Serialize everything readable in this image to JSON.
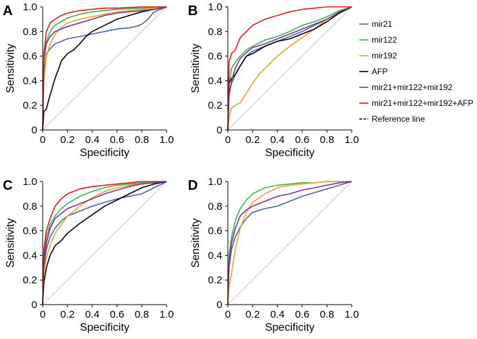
{
  "legend": [
    {
      "name": "mir21",
      "color": "#4a62a8"
    },
    {
      "name": "mir122",
      "color": "#3cb44b"
    },
    {
      "name": "mir192",
      "color": "#f0a128"
    },
    {
      "name": "AFP",
      "color": "#000000"
    },
    {
      "name": "mir21+mir122+mir192",
      "color": "#7b3294"
    },
    {
      "name": "mir21+mir122+mir192+AFP",
      "color": "#e31a1c"
    },
    {
      "name": "Reference line",
      "color": "#000000",
      "dash": true
    }
  ],
  "chart_data": [
    {
      "panel": "A",
      "type": "line",
      "xlabel": "Specificity",
      "ylabel": "Sensitivity",
      "xlim": [
        0,
        1
      ],
      "ylim": [
        0,
        1
      ],
      "xticks": [
        "0",
        "0.2",
        "0.4",
        "0.6",
        "0.8",
        "1.0"
      ],
      "yticks": [
        "0",
        "0.2",
        "0.4",
        "0.6",
        "0.8",
        "1.0"
      ],
      "series": [
        {
          "name": "mir21",
          "x": [
            0,
            0.01,
            0.03,
            0.06,
            0.1,
            0.15,
            0.2,
            0.3,
            0.4,
            0.5,
            0.6,
            0.7,
            0.75,
            0.8,
            0.85,
            0.9,
            1.0
          ],
          "y": [
            0,
            0.45,
            0.62,
            0.66,
            0.7,
            0.72,
            0.74,
            0.76,
            0.78,
            0.8,
            0.82,
            0.83,
            0.84,
            0.86,
            0.9,
            0.96,
            1.0
          ]
        },
        {
          "name": "mir122",
          "x": [
            0,
            0.01,
            0.03,
            0.06,
            0.1,
            0.15,
            0.2,
            0.3,
            0.4,
            0.5,
            0.6,
            0.7,
            0.8,
            0.9,
            1.0
          ],
          "y": [
            0,
            0.55,
            0.72,
            0.8,
            0.85,
            0.88,
            0.91,
            0.94,
            0.96,
            0.97,
            0.98,
            0.985,
            0.99,
            0.995,
            1.0
          ]
        },
        {
          "name": "mir192",
          "x": [
            0,
            0.01,
            0.03,
            0.06,
            0.1,
            0.15,
            0.2,
            0.3,
            0.4,
            0.5,
            0.6,
            0.7,
            0.8,
            0.9,
            1.0
          ],
          "y": [
            0,
            0.4,
            0.6,
            0.7,
            0.78,
            0.83,
            0.87,
            0.9,
            0.92,
            0.94,
            0.96,
            0.97,
            0.98,
            0.99,
            1.0
          ]
        },
        {
          "name": "AFP",
          "x": [
            0,
            0.01,
            0.03,
            0.05,
            0.08,
            0.1,
            0.13,
            0.15,
            0.2,
            0.25,
            0.3,
            0.35,
            0.4,
            0.5,
            0.6,
            0.7,
            0.8,
            0.9,
            1.0
          ],
          "y": [
            0,
            0.15,
            0.17,
            0.25,
            0.35,
            0.42,
            0.5,
            0.56,
            0.62,
            0.65,
            0.7,
            0.76,
            0.8,
            0.85,
            0.9,
            0.93,
            0.96,
            0.98,
            1.0
          ]
        },
        {
          "name": "mir21+mir122+mir192",
          "x": [
            0,
            0.01,
            0.03,
            0.06,
            0.1,
            0.15,
            0.2,
            0.3,
            0.4,
            0.5,
            0.6,
            0.7,
            0.8,
            0.9,
            1.0
          ],
          "y": [
            0,
            0.6,
            0.7,
            0.76,
            0.8,
            0.82,
            0.84,
            0.87,
            0.9,
            0.93,
            0.95,
            0.96,
            0.97,
            0.98,
            1.0
          ]
        },
        {
          "name": "mir21+mir122+mir192+AFP",
          "x": [
            0,
            0.01,
            0.03,
            0.06,
            0.1,
            0.15,
            0.2,
            0.3,
            0.4,
            0.5,
            0.6,
            0.7,
            0.8,
            0.9,
            1.0
          ],
          "y": [
            0,
            0.62,
            0.8,
            0.87,
            0.9,
            0.93,
            0.95,
            0.97,
            0.98,
            0.99,
            0.99,
            0.995,
            1.0,
            1.0,
            1.0
          ]
        }
      ]
    },
    {
      "panel": "B",
      "type": "line",
      "xlabel": "Specificity",
      "ylabel": "Sensitivity",
      "xlim": [
        0,
        1
      ],
      "ylim": [
        0,
        1
      ],
      "xticks": [
        "0",
        "0.2",
        "0.4",
        "0.6",
        "0.8",
        "1.0"
      ],
      "yticks": [
        "0",
        "0.2",
        "0.4",
        "0.6",
        "0.8",
        "1.0"
      ],
      "series": [
        {
          "name": "mir21",
          "x": [
            0,
            0.01,
            0.03,
            0.06,
            0.1,
            0.15,
            0.2,
            0.3,
            0.4,
            0.5,
            0.6,
            0.7,
            0.8,
            0.9,
            1.0
          ],
          "y": [
            0,
            0.3,
            0.38,
            0.45,
            0.52,
            0.6,
            0.64,
            0.68,
            0.72,
            0.76,
            0.8,
            0.85,
            0.9,
            0.95,
            1.0
          ]
        },
        {
          "name": "mir122",
          "x": [
            0,
            0.01,
            0.03,
            0.06,
            0.1,
            0.15,
            0.2,
            0.3,
            0.4,
            0.5,
            0.6,
            0.7,
            0.8,
            0.9,
            1.0
          ],
          "y": [
            0,
            0.38,
            0.5,
            0.55,
            0.6,
            0.65,
            0.68,
            0.73,
            0.76,
            0.8,
            0.85,
            0.88,
            0.92,
            0.97,
            1.0
          ]
        },
        {
          "name": "mir192",
          "x": [
            0,
            0.01,
            0.03,
            0.06,
            0.1,
            0.15,
            0.2,
            0.25,
            0.3,
            0.35,
            0.4,
            0.5,
            0.6,
            0.7,
            0.8,
            0.9,
            1.0
          ],
          "y": [
            0,
            0.1,
            0.18,
            0.2,
            0.22,
            0.3,
            0.38,
            0.45,
            0.5,
            0.55,
            0.6,
            0.68,
            0.75,
            0.82,
            0.9,
            0.95,
            1.0
          ]
        },
        {
          "name": "AFP",
          "x": [
            0,
            0.01,
            0.03,
            0.06,
            0.1,
            0.15,
            0.2,
            0.3,
            0.4,
            0.5,
            0.6,
            0.7,
            0.8,
            0.9,
            1.0
          ],
          "y": [
            0,
            0.38,
            0.42,
            0.45,
            0.52,
            0.6,
            0.62,
            0.68,
            0.72,
            0.74,
            0.78,
            0.82,
            0.88,
            0.95,
            1.0
          ]
        },
        {
          "name": "mir21+mir122+mir192",
          "x": [
            0,
            0.01,
            0.03,
            0.06,
            0.1,
            0.15,
            0.2,
            0.3,
            0.4,
            0.5,
            0.6,
            0.7,
            0.8,
            0.9,
            1.0
          ],
          "y": [
            0,
            0.28,
            0.4,
            0.5,
            0.58,
            0.63,
            0.67,
            0.7,
            0.74,
            0.78,
            0.82,
            0.86,
            0.9,
            0.96,
            1.0
          ]
        },
        {
          "name": "mir21+mir122+mir192+AFP",
          "x": [
            0,
            0.01,
            0.03,
            0.06,
            0.1,
            0.15,
            0.2,
            0.3,
            0.4,
            0.5,
            0.6,
            0.7,
            0.8,
            0.9,
            1.0
          ],
          "y": [
            0,
            0.55,
            0.62,
            0.65,
            0.75,
            0.8,
            0.85,
            0.9,
            0.93,
            0.96,
            0.98,
            0.99,
            1.0,
            1.0,
            1.0
          ]
        }
      ]
    },
    {
      "panel": "C",
      "type": "line",
      "xlabel": "Specificity",
      "ylabel": "Sensitivity",
      "xlim": [
        0,
        1
      ],
      "ylim": [
        0,
        1
      ],
      "xticks": [
        "0",
        "0.2",
        "0.4",
        "0.6",
        "0.8",
        "1.0"
      ],
      "yticks": [
        "0",
        "0.2",
        "0.4",
        "0.6",
        "0.8",
        "1.0"
      ],
      "series": [
        {
          "name": "mir21",
          "x": [
            0,
            0.01,
            0.03,
            0.06,
            0.1,
            0.15,
            0.2,
            0.3,
            0.4,
            0.5,
            0.6,
            0.7,
            0.8,
            0.9,
            1.0
          ],
          "y": [
            0,
            0.3,
            0.45,
            0.55,
            0.62,
            0.68,
            0.72,
            0.76,
            0.8,
            0.83,
            0.86,
            0.88,
            0.9,
            0.95,
            1.0
          ]
        },
        {
          "name": "mir122",
          "x": [
            0,
            0.01,
            0.03,
            0.06,
            0.1,
            0.15,
            0.2,
            0.3,
            0.4,
            0.5,
            0.6,
            0.7,
            0.8,
            0.9,
            1.0
          ],
          "y": [
            0,
            0.4,
            0.55,
            0.65,
            0.72,
            0.78,
            0.82,
            0.88,
            0.92,
            0.95,
            0.97,
            0.98,
            0.99,
            1.0,
            1.0
          ]
        },
        {
          "name": "mir192",
          "x": [
            0,
            0.01,
            0.03,
            0.06,
            0.1,
            0.15,
            0.2,
            0.3,
            0.4,
            0.5,
            0.6,
            0.7,
            0.8,
            0.9,
            1.0
          ],
          "y": [
            0,
            0.25,
            0.38,
            0.48,
            0.58,
            0.65,
            0.72,
            0.8,
            0.87,
            0.92,
            0.95,
            0.97,
            0.98,
            0.99,
            1.0
          ]
        },
        {
          "name": "AFP",
          "x": [
            0,
            0.01,
            0.03,
            0.06,
            0.1,
            0.15,
            0.2,
            0.3,
            0.4,
            0.5,
            0.6,
            0.7,
            0.8,
            0.9,
            1.0
          ],
          "y": [
            0,
            0.18,
            0.3,
            0.4,
            0.48,
            0.52,
            0.58,
            0.66,
            0.73,
            0.8,
            0.85,
            0.9,
            0.95,
            0.98,
            1.0
          ]
        },
        {
          "name": "mir21+mir122+mir192",
          "x": [
            0,
            0.01,
            0.03,
            0.06,
            0.1,
            0.15,
            0.2,
            0.3,
            0.4,
            0.5,
            0.6,
            0.7,
            0.8,
            0.9,
            1.0
          ],
          "y": [
            0,
            0.35,
            0.5,
            0.62,
            0.7,
            0.74,
            0.78,
            0.82,
            0.86,
            0.9,
            0.93,
            0.96,
            0.98,
            0.99,
            1.0
          ]
        },
        {
          "name": "mir21+mir122+mir192+AFP",
          "x": [
            0,
            0.01,
            0.03,
            0.06,
            0.1,
            0.15,
            0.2,
            0.3,
            0.4,
            0.5,
            0.6,
            0.7,
            0.8,
            0.9,
            1.0
          ],
          "y": [
            0,
            0.45,
            0.6,
            0.7,
            0.8,
            0.86,
            0.9,
            0.94,
            0.96,
            0.97,
            0.98,
            0.99,
            1.0,
            1.0,
            1.0
          ]
        }
      ]
    },
    {
      "panel": "D",
      "type": "line",
      "xlabel": "Specificity",
      "ylabel": "Sensitivity",
      "xlim": [
        0,
        1
      ],
      "ylim": [
        0,
        1
      ],
      "xticks": [
        "0",
        "0.2",
        "0.4",
        "0.6",
        "0.8",
        "1.0"
      ],
      "yticks": [
        "0",
        "0.2",
        "0.4",
        "0.6",
        "0.8",
        "1.0"
      ],
      "series": [
        {
          "name": "mir21",
          "x": [
            0,
            0.01,
            0.03,
            0.06,
            0.1,
            0.15,
            0.2,
            0.3,
            0.4,
            0.5,
            0.6,
            0.7,
            0.8,
            0.9,
            1.0
          ],
          "y": [
            0,
            0.3,
            0.45,
            0.55,
            0.63,
            0.7,
            0.75,
            0.78,
            0.8,
            0.84,
            0.88,
            0.91,
            0.94,
            0.97,
            1.0
          ]
        },
        {
          "name": "mir122",
          "x": [
            0,
            0.01,
            0.03,
            0.06,
            0.1,
            0.15,
            0.2,
            0.3,
            0.4,
            0.5,
            0.6,
            0.7,
            0.8,
            0.9,
            1.0
          ],
          "y": [
            0,
            0.4,
            0.55,
            0.68,
            0.78,
            0.85,
            0.9,
            0.95,
            0.97,
            0.98,
            0.99,
            0.99,
            1.0,
            1.0,
            1.0
          ]
        },
        {
          "name": "mir192",
          "x": [
            0,
            0.01,
            0.03,
            0.06,
            0.1,
            0.15,
            0.2,
            0.3,
            0.4,
            0.5,
            0.6,
            0.7,
            0.8,
            0.9,
            1.0
          ],
          "y": [
            0,
            0.15,
            0.25,
            0.45,
            0.62,
            0.75,
            0.83,
            0.9,
            0.95,
            0.97,
            0.98,
            0.99,
            1.0,
            1.0,
            1.0
          ]
        },
        {
          "name": "mir21+mir122+mir192",
          "x": [
            0,
            0.01,
            0.03,
            0.06,
            0.1,
            0.15,
            0.2,
            0.3,
            0.4,
            0.5,
            0.6,
            0.7,
            0.8,
            0.9,
            1.0
          ],
          "y": [
            0,
            0.35,
            0.5,
            0.62,
            0.72,
            0.77,
            0.8,
            0.84,
            0.88,
            0.9,
            0.93,
            0.95,
            0.97,
            0.99,
            1.0
          ]
        }
      ]
    }
  ]
}
